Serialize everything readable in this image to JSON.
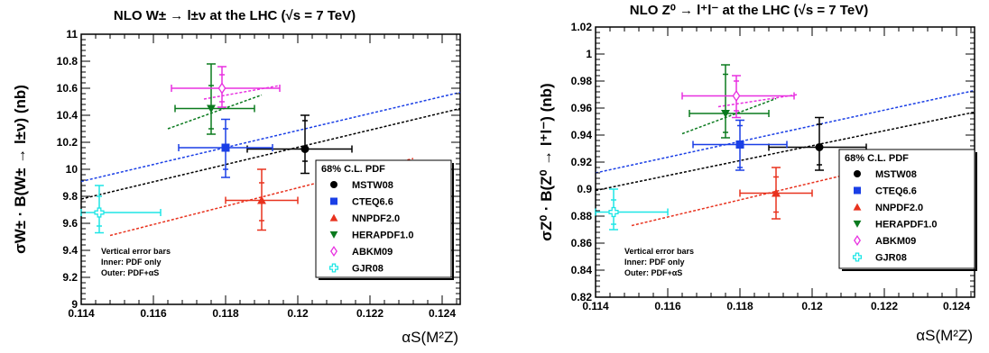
{
  "chart_data": [
    {
      "type": "scatter",
      "title": "NLO W± → l±ν at the LHC (√s = 7 TeV)",
      "xlabel": "αS(M²Z)",
      "ylabel": "σW± · B(W± → l±ν)  (nb)",
      "xlim": [
        0.114,
        0.1245
      ],
      "ylim": [
        9.0,
        11.0
      ],
      "xticks": [
        "0.114",
        "0.116",
        "0.118",
        "0.12",
        "0.122",
        "0.124"
      ],
      "yticks": [
        "9",
        "9.2",
        "9.4",
        "9.6",
        "9.8",
        "10",
        "10.2",
        "10.4",
        "10.6",
        "10.8",
        "11"
      ],
      "grid": false,
      "legend": {
        "title": "68% C.L. PDF",
        "placement": "right-middle",
        "entries": [
          "MSTW08",
          "CTEQ6.6",
          "NNPDF2.0",
          "HERAPDF1.0",
          "ABKM09",
          "GJR08"
        ]
      },
      "note": [
        "Vertical error bars",
        "Inner: PDF only",
        "Outer: PDF+αS"
      ],
      "series": [
        {
          "name": "MSTW08",
          "color": "#000000",
          "marker": "circle",
          "x": 0.1202,
          "y": 10.15,
          "xerr": [
            0.1186,
            0.1215
          ],
          "y_inner": [
            10.06,
            10.36
          ],
          "y_outer": [
            9.97,
            10.4
          ],
          "band": {
            "x": [
              0.114,
              0.1245
            ],
            "y": [
              9.78,
              10.45
            ]
          }
        },
        {
          "name": "CTEQ6.6",
          "color": "#1a3fe6",
          "marker": "square",
          "x": 0.118,
          "y": 10.16,
          "xerr": [
            0.1167,
            0.1193
          ],
          "y_inner": [
            10.0,
            10.3
          ],
          "y_outer": [
            9.94,
            10.37
          ],
          "band": {
            "x": [
              0.114,
              0.1245
            ],
            "y": [
              9.91,
              10.57
            ]
          }
        },
        {
          "name": "NNPDF2.0",
          "color": "#e8321e",
          "marker": "triangle-up",
          "x": 0.119,
          "y": 9.77,
          "xerr": [
            0.118,
            0.12
          ],
          "y_inner": [
            9.62,
            9.9
          ],
          "y_outer": [
            9.55,
            10.0
          ],
          "band": {
            "x": [
              0.1148,
              0.1232
            ],
            "y": [
              9.51,
              10.08
            ]
          }
        },
        {
          "name": "HERAPDF1.0",
          "color": "#0a7a1e",
          "marker": "triangle-down",
          "x": 0.1176,
          "y": 10.45,
          "xerr": [
            0.1166,
            0.1188
          ],
          "y_inner": [
            10.3,
            10.62
          ],
          "y_outer": [
            10.26,
            10.78
          ],
          "band": {
            "x": [
              0.1164,
              0.119
            ],
            "y": [
              10.3,
              10.55
            ]
          }
        },
        {
          "name": "ABKM09",
          "color": "#e830e0",
          "marker": "diamond-open",
          "x": 0.1179,
          "y": 10.6,
          "xerr": [
            0.1165,
            0.1195
          ],
          "y_inner": [
            10.5,
            10.7
          ],
          "y_outer": [
            10.46,
            10.76
          ],
          "band": {
            "x": [
              0.1174,
              0.1195
            ],
            "y": [
              10.52,
              10.62
            ]
          }
        },
        {
          "name": "GJR08",
          "color": "#1ee6e6",
          "marker": "cross-open",
          "x": 0.1145,
          "y": 9.68,
          "xerr": [
            0.114,
            0.1162
          ],
          "y_inner": [
            9.58,
            9.8
          ],
          "y_outer": [
            9.53,
            9.88
          ],
          "band": null
        }
      ]
    },
    {
      "type": "scatter",
      "title": "NLO Z⁰ → l⁺l⁻ at the LHC (√s = 7 TeV)",
      "xlabel": "αS(M²Z)",
      "ylabel": "σZ⁰ · B(Z⁰ → l⁺l⁻)  (nb)",
      "xlim": [
        0.114,
        0.1245
      ],
      "ylim": [
        0.82,
        1.02
      ],
      "xticks": [
        "0.114",
        "0.116",
        "0.118",
        "0.12",
        "0.122",
        "0.124"
      ],
      "yticks": [
        "0.82",
        "0.84",
        "0.86",
        "0.88",
        "0.9",
        "0.92",
        "0.94",
        "0.96",
        "0.98",
        "1",
        "1.02"
      ],
      "grid": false,
      "legend": {
        "title": "68% C.L. PDF",
        "placement": "right-middle",
        "entries": [
          "MSTW08",
          "CTEQ6.6",
          "NNPDF2.0",
          "HERAPDF1.0",
          "ABKM09",
          "GJR08"
        ]
      },
      "note": [
        "Vertical error bars",
        "Inner: PDF only",
        "Outer: PDF+αS"
      ],
      "series": [
        {
          "name": "MSTW08",
          "color": "#000000",
          "marker": "circle",
          "x": 0.1202,
          "y": 0.931,
          "xerr": [
            0.1188,
            0.1215
          ],
          "y_inner": [
            0.918,
            0.948
          ],
          "y_outer": [
            0.914,
            0.953
          ],
          "band": {
            "x": [
              0.114,
              0.1245
            ],
            "y": [
              0.899,
              0.957
            ]
          }
        },
        {
          "name": "CTEQ6.6",
          "color": "#1a3fe6",
          "marker": "square",
          "x": 0.118,
          "y": 0.933,
          "xerr": [
            0.1167,
            0.1193
          ],
          "y_inner": [
            0.916,
            0.947
          ],
          "y_outer": [
            0.914,
            0.951
          ],
          "band": {
            "x": [
              0.114,
              0.1245
            ],
            "y": [
              0.912,
              0.973
            ]
          }
        },
        {
          "name": "NNPDF2.0",
          "color": "#e8321e",
          "marker": "triangle-up",
          "x": 0.119,
          "y": 0.897,
          "xerr": [
            0.118,
            0.12
          ],
          "y_inner": [
            0.883,
            0.909
          ],
          "y_outer": [
            0.878,
            0.916
          ],
          "band": {
            "x": [
              0.115,
              0.1232
            ],
            "y": [
              0.873,
              0.925
            ]
          }
        },
        {
          "name": "HERAPDF1.0",
          "color": "#0a7a1e",
          "marker": "triangle-down",
          "x": 0.1176,
          "y": 0.956,
          "xerr": [
            0.1166,
            0.1188
          ],
          "y_inner": [
            0.942,
            0.985
          ],
          "y_outer": [
            0.938,
            0.992
          ],
          "band": {
            "x": [
              0.1164,
              0.119
            ],
            "y": [
              0.941,
              0.967
            ]
          }
        },
        {
          "name": "ABKM09",
          "color": "#e830e0",
          "marker": "diamond-open",
          "x": 0.1179,
          "y": 0.969,
          "xerr": [
            0.1164,
            0.1195
          ],
          "y_inner": [
            0.958,
            0.98
          ],
          "y_outer": [
            0.953,
            0.984
          ],
          "band": {
            "x": [
              0.1174,
              0.1196
            ],
            "y": [
              0.961,
              0.97
            ]
          }
        },
        {
          "name": "GJR08",
          "color": "#1ee6e6",
          "marker": "cross-open",
          "x": 0.1145,
          "y": 0.883,
          "xerr": [
            0.114,
            0.116
          ],
          "y_inner": [
            0.874,
            0.892
          ],
          "y_outer": [
            0.87,
            0.9
          ],
          "band": null
        }
      ]
    }
  ]
}
